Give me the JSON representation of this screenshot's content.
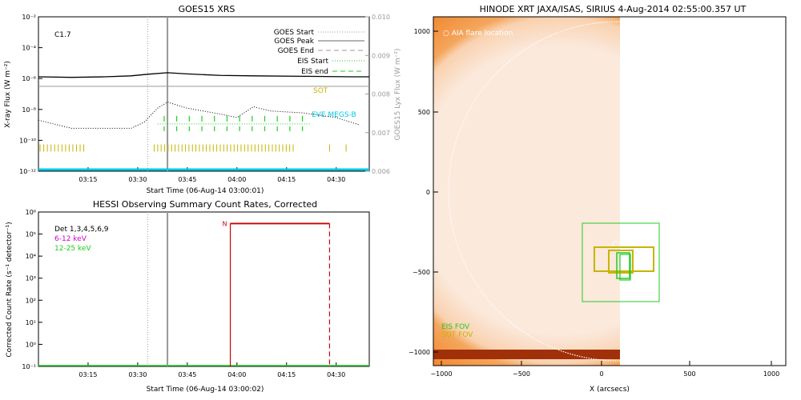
{
  "colors": {
    "black": "#000000",
    "gray": "#9a9a9a",
    "green": "#22cc22",
    "cyan": "#00c8e6",
    "gold": "#c8b400",
    "magenta": "#d000d0",
    "red": "#cc0000",
    "sun_bg": "#f27a18",
    "sun_disk": "#fbe9dc",
    "white": "#ffffff"
  },
  "chart_data": [
    {
      "type": "line",
      "title": "GOES15 XRS",
      "xlabel": "Start Time (06-Aug-14 03:00:01)",
      "ylabel": "X-ray Flux (W m⁻²)",
      "ylabel_right": "GOES15 Lyx Flux (W m⁻²)",
      "xlim": [
        "03:00",
        "04:40"
      ],
      "ylim": [
        1e-12,
        0.01
      ],
      "yscale": "log",
      "ylim_right": [
        0.006,
        0.01
      ],
      "x_ticks": [
        "03:15",
        "03:30",
        "03:45",
        "04:00",
        "04:15",
        "04:30"
      ],
      "y_ticks": [
        "10⁻¹²",
        "10⁻¹⁰",
        "10⁻⁸",
        "10⁻⁶",
        "10⁻⁴",
        "10⁻²"
      ],
      "y_ticks_right": [
        "0.006",
        "0.007",
        "0.008",
        "0.009",
        "0.010"
      ],
      "flare_class": "C1.7",
      "legend": [
        "GOES Start",
        "GOES Peak",
        "GOES End",
        "EIS Start",
        "EIS end"
      ],
      "legend_placement": "top-right",
      "annotations": {
        "sot": "SOT",
        "eve": "EVE MEGS-B"
      },
      "goes_start": "03:33",
      "goes_peak": "03:39",
      "series": [
        {
          "name": "",
          "x": [
            "03:00",
            "03:10",
            "03:20",
            "03:28",
            "03:33",
            "03:39",
            "03:45",
            "03:55",
            "04:05",
            "04:20",
            "04:35",
            "04:40"
          ],
          "values": [
            1.3e-06,
            1.2e-06,
            1.3e-06,
            1.5e-06,
            1.9e-06,
            2.4e-06,
            2e-06,
            1.6e-06,
            1.5e-06,
            1.4e-06,
            1.3e-06,
            1.3e-06
          ]
        },
        {
          "name": "",
          "x": [
            "03:00",
            "03:10",
            "03:20",
            "03:28",
            "03:32",
            "03:36",
            "03:39",
            "03:45",
            "03:55",
            "04:00",
            "04:05",
            "04:10",
            "04:20",
            "04:30",
            "04:37"
          ],
          "values": [
            2e-09,
            6e-10,
            6e-10,
            6e-10,
            1.5e-09,
            1.2e-08,
            3e-08,
            1.2e-08,
            5e-09,
            3e-09,
            1.5e-08,
            8e-09,
            6e-09,
            3e-09,
            1e-09
          ]
        },
        {
          "name": "",
          "x": [
            "03:00",
            "04:40"
          ],
          "values": [
            0.0082,
            0.0082
          ]
        }
      ]
    },
    {
      "type": "line",
      "title": "HESSI Observing Summary Count Rates, Corrected",
      "xlabel": "Start Time (06-Aug-14 03:00:02)",
      "ylabel": "Corrected Count Rate (s⁻¹ detector⁻¹)",
      "xlim": [
        "03:00",
        "04:40"
      ],
      "ylim": [
        0.1,
        1000000.0
      ],
      "yscale": "log",
      "x_ticks": [
        "03:15",
        "03:30",
        "03:45",
        "04:00",
        "04:15",
        "04:30"
      ],
      "y_ticks": [
        "10⁻¹",
        "10⁰",
        "10¹",
        "10²",
        "10³",
        "10⁴",
        "10⁵",
        "10⁶"
      ],
      "legend": [
        "Det 1,3,4,5,6,9",
        "6-12 keV",
        "12-25 keV"
      ],
      "legend_placement": "top-left",
      "marker": "N",
      "events": {
        "start": "03:58",
        "end": "04:28",
        "level": 300000.0
      }
    }
  ],
  "image_panel": {
    "title": "HINODE XRT JAXA/ISAS, SIRIUS   4-Aug-2014 02:55:00.357 UT",
    "xlabel": "X (arcsecs)",
    "x_ticks": [
      "−1000",
      "−500",
      "0",
      "500",
      "1000"
    ],
    "y_ticks": [
      "1000",
      "500",
      "0",
      "−500",
      "−1000"
    ],
    "aia_label": "AIA flare location",
    "eis_fov_label": "EIS FOV",
    "sot_fov_label": "SOT FOV"
  }
}
